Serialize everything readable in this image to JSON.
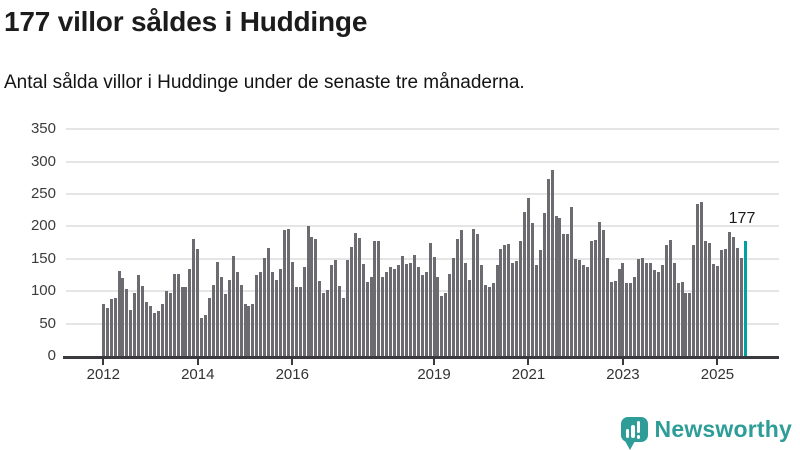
{
  "header": {
    "title": "177 villor såldes i Huddinge",
    "subtitle": "Antal sålda villor i Huddinge under de senaste tre månaderna."
  },
  "branding": {
    "name": "Newsworthy",
    "color": "#2e9d97",
    "icon": "bar-chart-speech-bubble"
  },
  "chart_data": {
    "type": "bar",
    "title": "177 villor såldes i Huddinge",
    "xlabel": "",
    "ylabel": "",
    "frequency": "monthly",
    "x_start": "2012-01",
    "x_end": "2025-08",
    "ylim": [
      0,
      350
    ],
    "grid": true,
    "yticks": [
      0,
      50,
      100,
      150,
      200,
      250,
      300,
      350
    ],
    "xticks": [
      {
        "label": "2012",
        "month_index": 0
      },
      {
        "label": "2014",
        "month_index": 24
      },
      {
        "label": "2016",
        "month_index": 48
      },
      {
        "label": "2019",
        "month_index": 84
      },
      {
        "label": "2021",
        "month_index": 108
      },
      {
        "label": "2023",
        "month_index": 132
      },
      {
        "label": "2025",
        "month_index": 156
      }
    ],
    "bar_color": "#6b6b70",
    "highlight_color": "#00a1a1",
    "highlight_last": true,
    "last_value_label": "177",
    "values": [
      81,
      74,
      88,
      89,
      131,
      121,
      103,
      71,
      98,
      125,
      108,
      84,
      77,
      66,
      69,
      80,
      100,
      98,
      126,
      127,
      107,
      106,
      135,
      180,
      165,
      58,
      63,
      90,
      110,
      145,
      122,
      95,
      117,
      155,
      130,
      110,
      81,
      77,
      80,
      125,
      130,
      151,
      167,
      130,
      117,
      135,
      195,
      196,
      145,
      107,
      107,
      137,
      200,
      183,
      180,
      116,
      97,
      102,
      140,
      148,
      108,
      90,
      148,
      169,
      190,
      182,
      142,
      115,
      122,
      177,
      178,
      122,
      129,
      138,
      135,
      140,
      154,
      142,
      143,
      156,
      138,
      125,
      129,
      175,
      153,
      122,
      93,
      97,
      126,
      152,
      180,
      194,
      143,
      117,
      196,
      188,
      141,
      110,
      106,
      112,
      141,
      165,
      171,
      173,
      144,
      146,
      178,
      223,
      244,
      205,
      141,
      164,
      221,
      274,
      287,
      216,
      213,
      188,
      189,
      230,
      150,
      148,
      141,
      138,
      178,
      179,
      207,
      195,
      151,
      115,
      116,
      135,
      143,
      113,
      113,
      122,
      150,
      151,
      143,
      144,
      133,
      129,
      141,
      171,
      179,
      143,
      113,
      115,
      98,
      97,
      171,
      235,
      237,
      177,
      175,
      142,
      139,
      163,
      165,
      192,
      183,
      166,
      151,
      177
    ]
  }
}
